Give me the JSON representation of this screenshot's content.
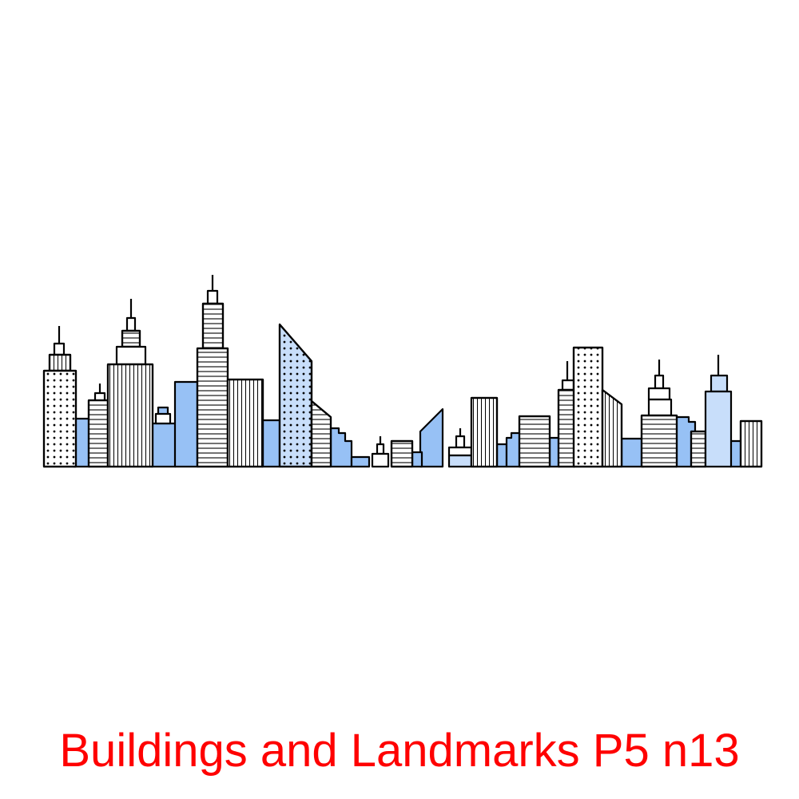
{
  "caption": "Buildings and Landmarks P5 n13",
  "colors": {
    "caption": "#ff0000",
    "outline": "#000000",
    "fill_light": "#c8defa",
    "fill_mid": "#97c1f5",
    "background": "#ffffff"
  },
  "illustration": {
    "subject": "city-skyline",
    "style": "line-art"
  }
}
